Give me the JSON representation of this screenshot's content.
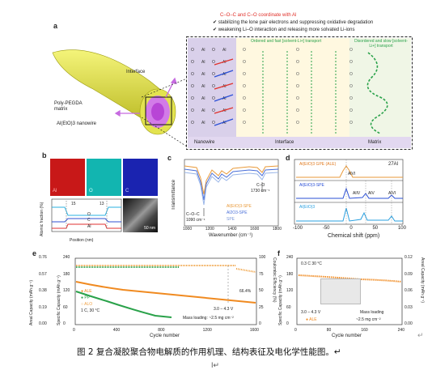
{
  "panel_labels": {
    "a": "a",
    "b": "b",
    "c": "c",
    "d": "d",
    "e": "e",
    "f": "f"
  },
  "panel_a": {
    "coord_prefix": "C–O–C and C–O coordinate with Al",
    "bullet_1": "stabilizing the lone pair electrons and suppressing oxidative degradation",
    "bullet_2": "weakening Li–O interaction and releasing more solvated Li-ions",
    "interface_label": "Interface",
    "matrix_label": "Poly-PEGDA\nmatrix",
    "nanowire_label": "Al(EtO)3 nanowire",
    "ordered_text": "Ordered and fast [solvent-Li+] transport",
    "disordered_text": "Disordered and slow [solvent-Li+] transport",
    "region_nanowire": "Nanowire",
    "region_interface": "Interface",
    "region_matrix": "Matrix",
    "colors": {
      "red": "#e0302a",
      "blue": "#2a4fd6",
      "green": "#2aa24a",
      "yellow": "#e4e43a",
      "purple": "#c66be0"
    }
  },
  "panel_b": {
    "map_labels": [
      "Al",
      "O",
      "C"
    ],
    "ylabel": "Atomic fraction (%)",
    "xlabel": "Position (nm)",
    "line_labels": [
      "O",
      "C",
      "Al"
    ],
    "markers": [
      "15",
      "13"
    ],
    "scale_bar": "50 nm"
  },
  "panel_c": {
    "ylabel": "Transmittance",
    "xlabel": "Wavenumber (cm⁻¹)",
    "ann_coc": "C–O–C",
    "ann_1090": "1090 cm⁻¹",
    "ann_co": "C–O",
    "ann_1730": "1730 cm⁻¹",
    "legend": [
      "Al(EtO)3-SPE",
      "Al2O3-SPE",
      "SPE"
    ],
    "ticks": [
      "1000",
      "1200",
      "1400",
      "1600",
      "1800"
    ]
  },
  "panel_d": {
    "xlabel": "Chemical shift (ppm)",
    "nucleus": "27Al",
    "traces": [
      "Al(EtO)3 GPE (ALE)",
      "Al(EtO)3-SPE",
      "Al(EtO)3"
    ],
    "peaks": [
      "AlVI",
      "AlIV",
      "AlV",
      "AlVI"
    ],
    "ticks": [
      "-100",
      "-50",
      "0",
      "50",
      "100"
    ]
  },
  "panel_e": {
    "ylabel_left": "Areal Capacity (mAh g⁻¹)",
    "ylabel_left2": "Specific Capacity (mAh g⁻¹)",
    "ylabel_right": "Coulombic Efficiency (%)",
    "xlabel": "Cycle number",
    "legend": [
      "ALE",
      "PP",
      "ALO"
    ],
    "rate": "1 C, 30 °C",
    "retention": "66.4%",
    "voltage": "3.0 – 4.3 V",
    "mass_loading": "Mass loading: ~2.5 mg cm⁻²",
    "left_ticks": [
      "0.76",
      "0.57",
      "0.38",
      "0.19",
      "0.00"
    ],
    "left2_ticks": [
      "240",
      "180",
      "120",
      "60",
      "0"
    ],
    "right_ticks": [
      "100",
      "75",
      "50",
      "25",
      "0"
    ],
    "x_ticks": [
      "0",
      "400",
      "800",
      "1200",
      "1600"
    ]
  },
  "panel_f": {
    "rate": "0.3 C 30 °C",
    "voltage": "3.0 – 4.3 V",
    "mass_loading_1": "Mass loading",
    "mass_loading_2": "~2.5 mg cm⁻²",
    "legend": "ALE",
    "ylabel_left": "Specific Capacity (mAh g⁻¹)",
    "ylabel_right": "Areal Capacity (mAh g⁻¹)",
    "xlabel": "Cycle number",
    "left_ticks": [
      "240",
      "180",
      "120",
      "60",
      "0"
    ],
    "right_ticks": [
      "0.12",
      "0.09",
      "0.06",
      "0.03",
      "0.00"
    ],
    "x_ticks": [
      "0",
      "80",
      "160",
      "240"
    ]
  },
  "caption": "图 2  复合凝胶聚合物电解质的作用机理、结构表征及电化学性能图。↵",
  "para_mark": "↵",
  "cursor_mark": "I↵"
}
